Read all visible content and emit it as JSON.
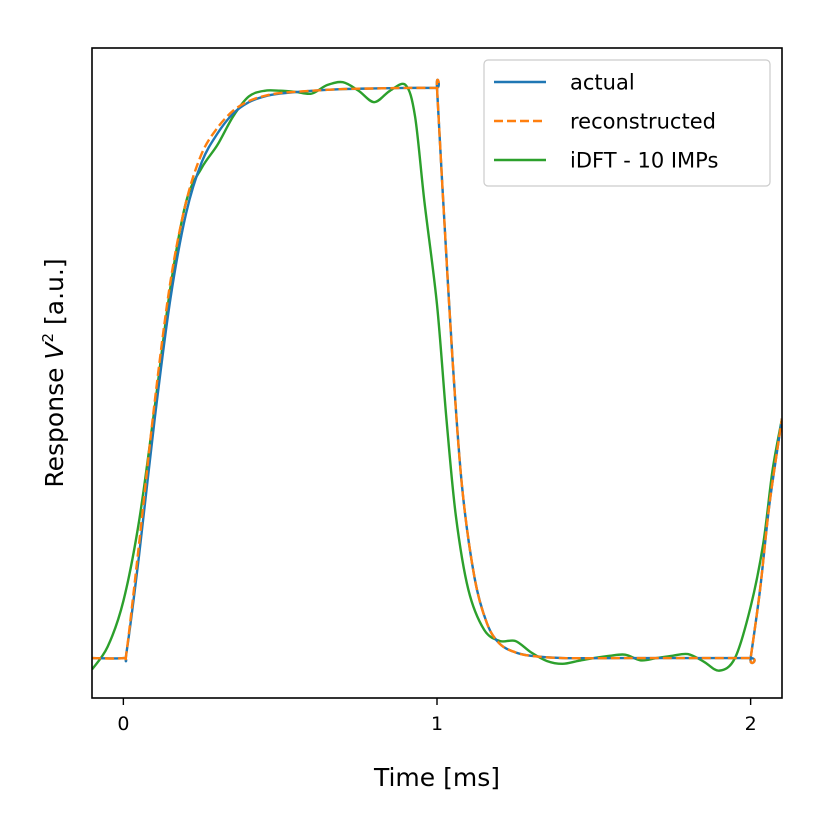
{
  "chart_data": {
    "type": "line",
    "xlabel": "Time [ms]",
    "ylabel_prefix": "Response ",
    "ylabel_var": "V",
    "ylabel_sup": "2",
    "ylabel_suffix": " [a.u.]",
    "xlim": [
      -0.1,
      2.1
    ],
    "ylim": [
      -0.07,
      1.07
    ],
    "xticks": [
      0,
      1,
      2
    ],
    "xtick_labels": [
      "0",
      "1",
      "2"
    ],
    "yticks_shown": false,
    "grid": false,
    "legend_position": "top-right",
    "series": [
      {
        "name": "actual",
        "color": "#1f77b4",
        "style": "solid",
        "x": [
          -0.1,
          0.0,
          0.01,
          0.05,
          0.1,
          0.15,
          0.2,
          0.25,
          0.3,
          0.35,
          0.4,
          0.45,
          0.5,
          0.6,
          0.7,
          0.8,
          0.9,
          0.999,
          1.0,
          1.02,
          1.05,
          1.08,
          1.12,
          1.16,
          1.2,
          1.25,
          1.3,
          1.4,
          1.6,
          1.8,
          1.999,
          2.0,
          2.03,
          2.06,
          2.1
        ],
        "y": [
          0.0,
          0.0,
          0.01,
          0.18,
          0.42,
          0.63,
          0.78,
          0.87,
          0.92,
          0.955,
          0.975,
          0.985,
          0.99,
          0.995,
          0.998,
          0.999,
          1.0,
          1.0,
          1.0,
          0.8,
          0.52,
          0.3,
          0.14,
          0.06,
          0.025,
          0.01,
          0.004,
          0.0,
          0.0,
          0.0,
          0.0,
          0.0,
          0.12,
          0.27,
          0.42
        ]
      },
      {
        "name": "reconstructed",
        "color": "#ff7f0e",
        "style": "dashed",
        "x": [
          -0.1,
          0.0,
          0.01,
          0.05,
          0.1,
          0.15,
          0.2,
          0.25,
          0.3,
          0.35,
          0.4,
          0.45,
          0.5,
          0.6,
          0.7,
          0.8,
          0.9,
          0.999,
          1.0,
          1.02,
          1.05,
          1.08,
          1.12,
          1.16,
          1.2,
          1.25,
          1.3,
          1.4,
          1.6,
          1.8,
          1.999,
          2.0,
          2.03,
          2.06,
          2.1
        ],
        "y": [
          0.0,
          0.0,
          0.01,
          0.2,
          0.45,
          0.66,
          0.8,
          0.885,
          0.93,
          0.96,
          0.977,
          0.986,
          0.991,
          0.995,
          0.998,
          0.999,
          1.0,
          1.0,
          1.0,
          0.8,
          0.52,
          0.3,
          0.14,
          0.06,
          0.025,
          0.01,
          0.004,
          0.0,
          0.0,
          0.0,
          0.0,
          0.0,
          0.12,
          0.27,
          0.42
        ]
      },
      {
        "name": "iDFT - 10 IMPs",
        "color": "#2ca02c",
        "style": "solid",
        "x": [
          -0.1,
          -0.05,
          0.0,
          0.05,
          0.1,
          0.15,
          0.2,
          0.25,
          0.3,
          0.35,
          0.4,
          0.45,
          0.5,
          0.55,
          0.6,
          0.65,
          0.7,
          0.75,
          0.8,
          0.85,
          0.9,
          0.93,
          0.96,
          1.0,
          1.03,
          1.06,
          1.1,
          1.15,
          1.2,
          1.25,
          1.3,
          1.35,
          1.4,
          1.45,
          1.5,
          1.55,
          1.6,
          1.65,
          1.7,
          1.75,
          1.8,
          1.85,
          1.9,
          1.95,
          2.0,
          2.04,
          2.07,
          2.1
        ],
        "y": [
          -0.02,
          0.02,
          0.1,
          0.24,
          0.44,
          0.65,
          0.8,
          0.86,
          0.9,
          0.95,
          0.985,
          0.995,
          0.995,
          0.993,
          0.99,
          1.005,
          1.01,
          0.995,
          0.975,
          0.995,
          1.005,
          0.95,
          0.8,
          0.62,
          0.42,
          0.25,
          0.12,
          0.05,
          0.03,
          0.03,
          0.01,
          -0.005,
          -0.01,
          -0.005,
          0.0,
          0.004,
          0.006,
          -0.004,
          0.0,
          0.004,
          0.007,
          -0.006,
          -0.022,
          0.0,
          0.09,
          0.2,
          0.33,
          0.42
        ]
      }
    ]
  }
}
